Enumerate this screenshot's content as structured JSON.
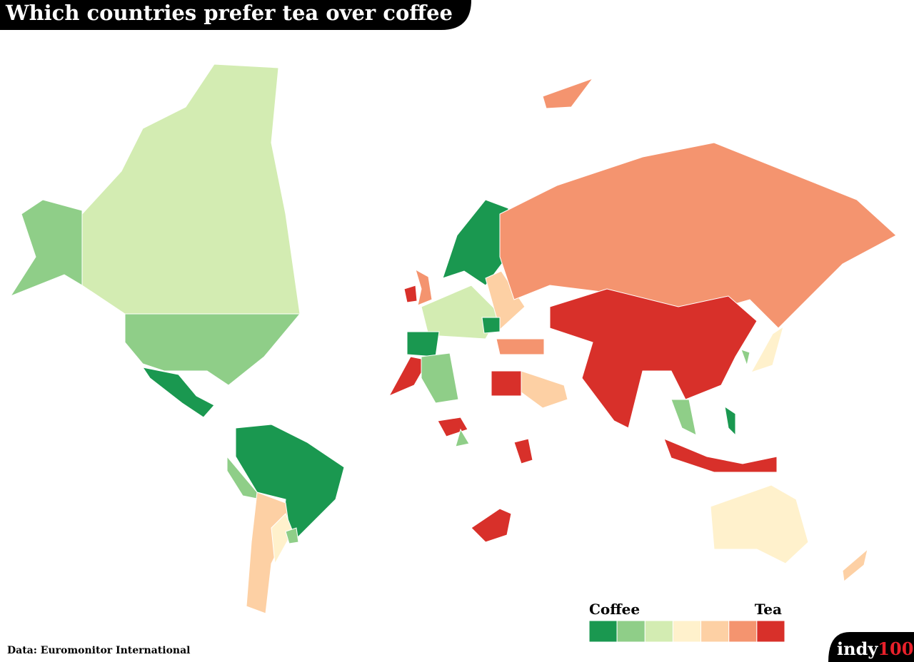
{
  "title": "Which countries prefer tea over coffee",
  "legend": {
    "low_label": "Coffee",
    "high_label": "Tea",
    "colors": [
      "#1a9850",
      "#8fce88",
      "#d3ecb2",
      "#fff1cc",
      "#fdd0a4",
      "#f4946f",
      "#d8302a"
    ]
  },
  "source": "Data: Euromonitor International",
  "logo": {
    "part1": "indy",
    "part2": "100"
  }
}
